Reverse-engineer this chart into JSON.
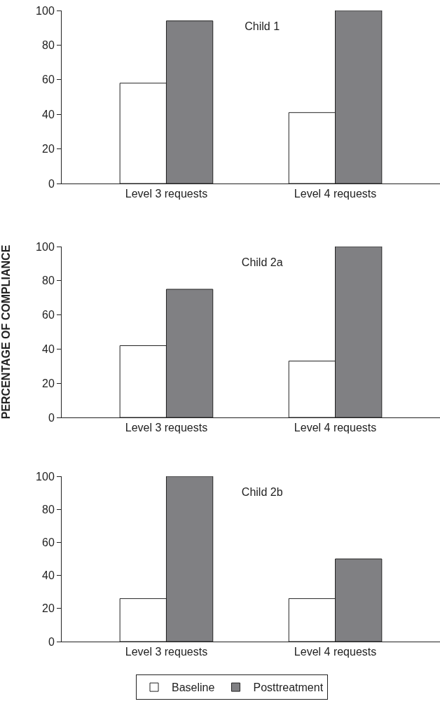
{
  "chart_data": [
    {
      "type": "bar",
      "title": "Child 1",
      "categories": [
        "Level 3 requests",
        "Level 4 requests"
      ],
      "series": [
        {
          "color": "#ffffff",
          "values": [
            58,
            41
          ]
        },
        {
          "color": "#808083",
          "values": [
            94,
            100
          ]
        }
      ],
      "ylim": [
        0,
        100
      ],
      "yticks": [
        0,
        20,
        40,
        60,
        80,
        100
      ]
    },
    {
      "type": "bar",
      "title": "Child 2a",
      "ylabel": "PERCENTAGE OF COMPLIANCE",
      "categories": [
        "Level 3 requests",
        "Level 4 requests"
      ],
      "series": [
        {
          "color": "#ffffff",
          "values": [
            42,
            33
          ]
        },
        {
          "color": "#808083",
          "values": [
            75,
            100
          ]
        }
      ],
      "ylim": [
        0,
        100
      ],
      "yticks": [
        0,
        20,
        40,
        60,
        80,
        100
      ]
    },
    {
      "type": "bar",
      "title": "Child 2b",
      "categories": [
        "Level 3 requests",
        "Level 4 requests"
      ],
      "series": [
        {
          "name": "Baseline",
          "color": "#ffffff",
          "values": [
            26,
            26
          ]
        },
        {
          "name": "Posttreatment",
          "color": "#808083",
          "values": [
            100,
            50
          ]
        }
      ],
      "ylim": [
        0,
        100
      ],
      "yticks": [
        0,
        20,
        40,
        60,
        80,
        100
      ],
      "legend": "bottom"
    }
  ]
}
